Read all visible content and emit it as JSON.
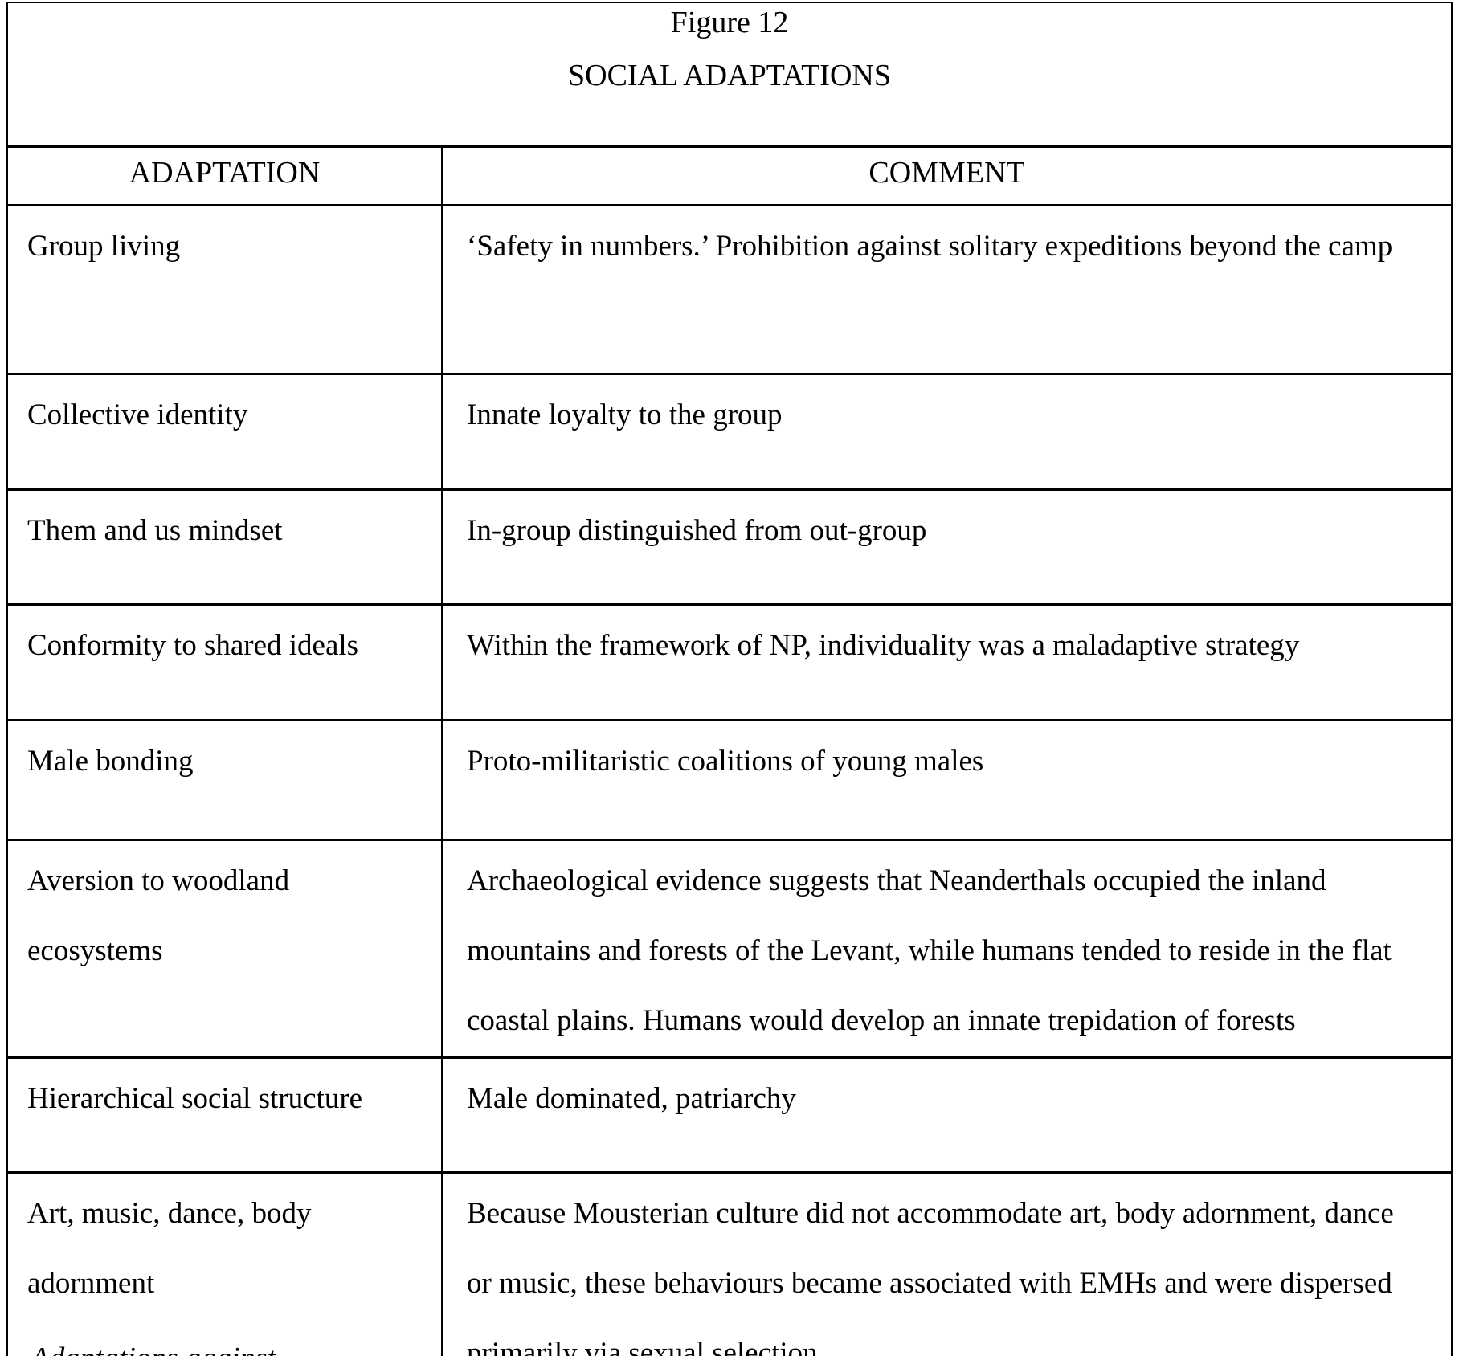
{
  "page": {
    "figure_label": "Figure 12",
    "title": "SOCIAL ADAPTATIONS"
  },
  "table": {
    "headers": {
      "adaptation": "ADAPTATION",
      "comment": "COMMENT"
    },
    "rows": [
      {
        "adaptation": "Group living",
        "comment": "‘Safety in numbers.’ Prohibition against solitary expeditions beyond the camp"
      },
      {
        "adaptation": "Collective identity",
        "comment": "Innate loyalty to the group"
      },
      {
        "adaptation": "Them and us mindset",
        "comment": "In-group distinguished from out-group"
      },
      {
        "adaptation": "Conformity to shared ideals",
        "comment": "Within the framework of NP, individuality was a maladaptive strategy"
      },
      {
        "adaptation": "Male bonding",
        "comment": "Proto-militaristic coalitions of young males"
      },
      {
        "adaptation": "Aversion to woodland ecosystems",
        "comment": "Archaeological evidence suggests that Neanderthals occupied the inland mountains and forests of the Levant, while humans tended to reside in the flat coastal plains. Humans would develop an innate trepidation of forests"
      },
      {
        "adaptation": "Hierarchical social structure",
        "comment": "Male dominated, patriarchy"
      },
      {
        "adaptation": "Art, music, dance, body adornment",
        "comment": "Because Mousterian culture did not accommodate art, body adornment, dance or music, these behaviours became associated with EMHs and were dispersed primarily via sexual selection."
      }
    ]
  },
  "footer": {
    "partial_text": "Adaptations against"
  },
  "colors": {
    "background": "#ffffff",
    "text": "#000000",
    "border": "#000000"
  }
}
